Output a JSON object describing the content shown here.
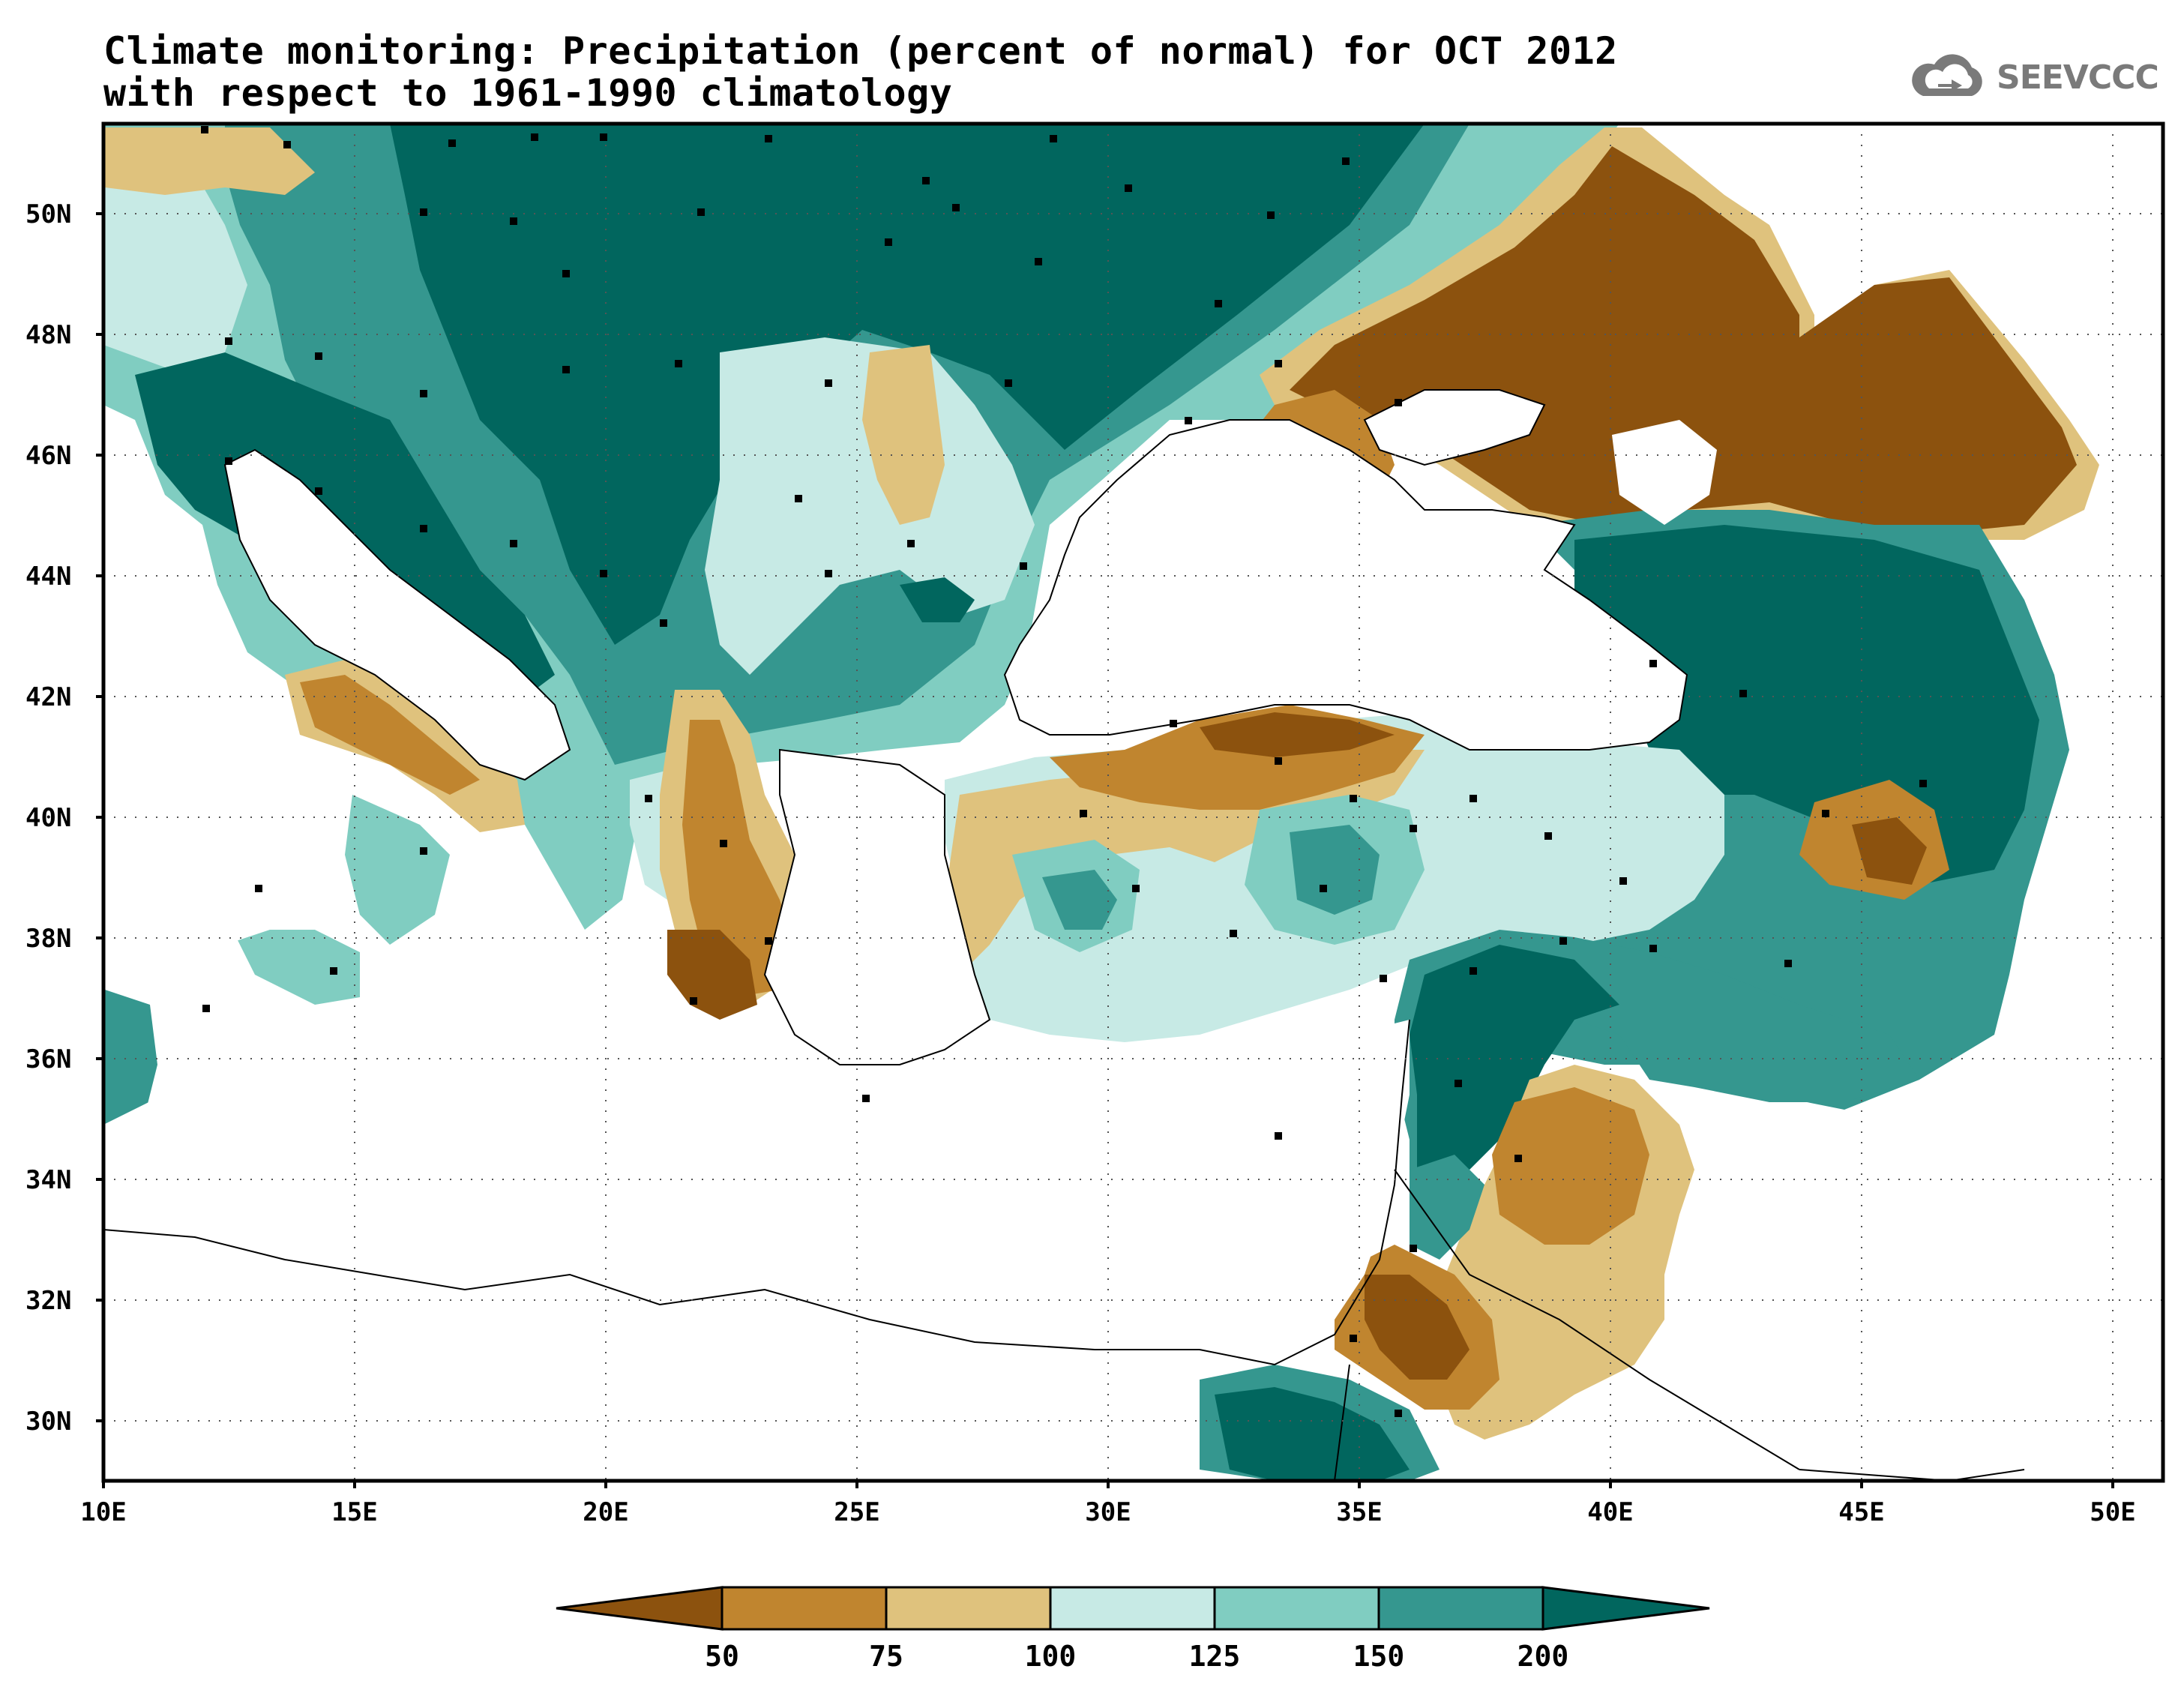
{
  "title": {
    "line1": "Climate monitoring: Precipitation (percent of normal) for OCT 2012",
    "line2": "with respect to 1961-1990 climatology"
  },
  "logo": {
    "text": "SEEVCCC",
    "icon": "cloud-icon"
  },
  "axes": {
    "lat_ticks": [
      "50N",
      "48N",
      "46N",
      "44N",
      "42N",
      "40N",
      "38N",
      "36N",
      "34N",
      "32N",
      "30N"
    ],
    "lon_ticks": [
      "10E",
      "15E",
      "20E",
      "25E",
      "30E",
      "35E",
      "40E",
      "45E",
      "50E"
    ],
    "lon_range": [
      10,
      51
    ],
    "lat_range": [
      29,
      51.5
    ]
  },
  "colorbar": {
    "labels": [
      "50",
      "75",
      "100",
      "125",
      "150",
      "200"
    ],
    "colors": [
      "#8c520e",
      "#c0852f",
      "#dfc27d",
      "#c7eae5",
      "#80cdc1",
      "#35978f",
      "#01665e"
    ]
  },
  "colors": {
    "land_bg": "#ffffff",
    "grid": "#555555"
  }
}
